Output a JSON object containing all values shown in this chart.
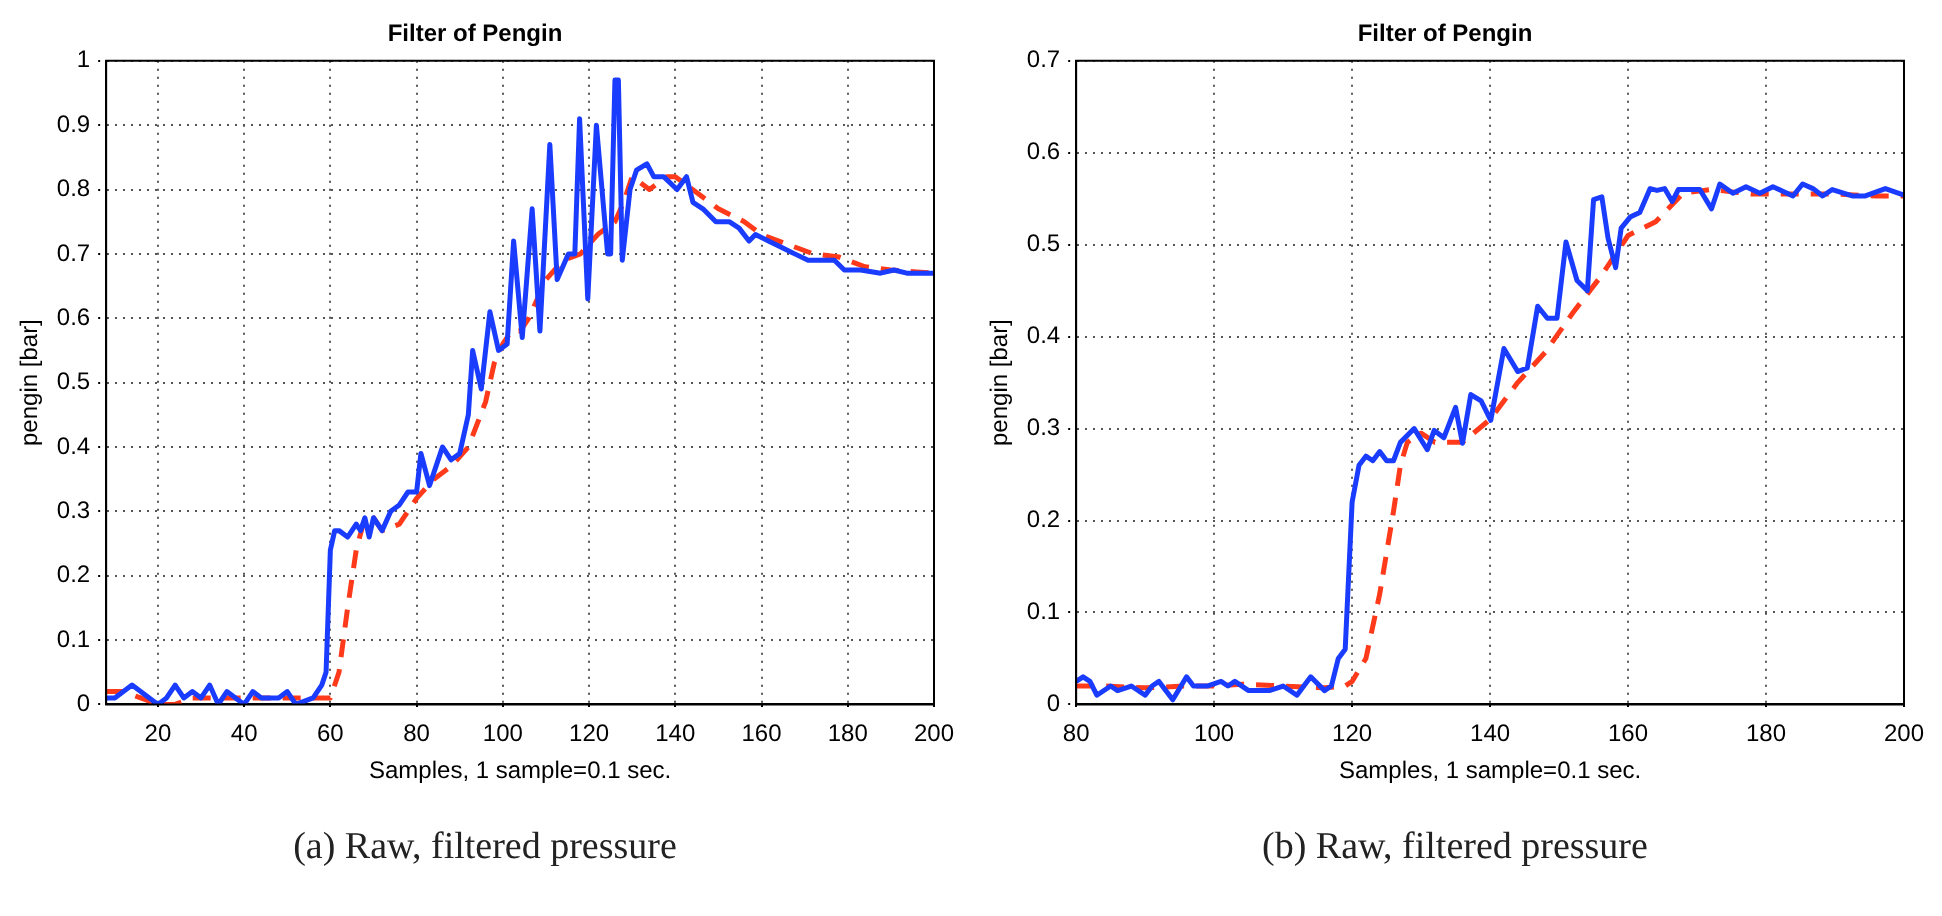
{
  "chart_data": [
    {
      "type": "line",
      "title": "Filter of Pengin",
      "xlabel": "Samples, 1 sample=0.1 sec.",
      "ylabel": "pengin [bar]",
      "annotations": [
        "(a) Raw, filtered pressure"
      ],
      "xlim": [
        8,
        200
      ],
      "xticks": [
        20,
        40,
        60,
        80,
        100,
        120,
        140,
        160,
        180,
        200
      ],
      "ylim": [
        0,
        1
      ],
      "yticks": [
        0,
        0.1,
        0.2,
        0.3,
        0.4,
        0.5,
        0.6,
        0.7,
        0.8,
        0.9,
        1
      ],
      "grid": true,
      "legend": false,
      "marker": "none",
      "series": [
        {
          "color": "#1a3cff",
          "line_style": "solid",
          "x": [
            8,
            10,
            12,
            14,
            16,
            18,
            20,
            22,
            24,
            26,
            28,
            30,
            32,
            34,
            36,
            38,
            40,
            42,
            44,
            48,
            50,
            52,
            56,
            58,
            59,
            60,
            61,
            62,
            64,
            66,
            67,
            68,
            69,
            70,
            72,
            74,
            76,
            78,
            80,
            81,
            83,
            85,
            86,
            88,
            90,
            92,
            93,
            95,
            97,
            99,
            101,
            102.5,
            104.5,
            106.8,
            108.6,
            110.9,
            112.6,
            115.2,
            116.7,
            117.8,
            119.7,
            121.7,
            124.3,
            125,
            126,
            126.8,
            127.7,
            129.5,
            131,
            133.4,
            135,
            137.3,
            140.4,
            142.6,
            144.1,
            146.4,
            149.4,
            152.5,
            154.8,
            157.1,
            158.6,
            161.6,
            164.7,
            167.7,
            170.8,
            173.8,
            176.9,
            179.2,
            183,
            187.6,
            190.7,
            193.7,
            196,
            200
          ],
          "values": [
            0.01,
            0.01,
            0.02,
            0.03,
            0.02,
            0.01,
            0,
            0.01,
            0.03,
            0.01,
            0.02,
            0.01,
            0.03,
            0,
            0.02,
            0.01,
            0,
            0.02,
            0.01,
            0.01,
            0.02,
            0,
            0.01,
            0.03,
            0.05,
            0.24,
            0.27,
            0.27,
            0.26,
            0.28,
            0.27,
            0.29,
            0.26,
            0.29,
            0.27,
            0.3,
            0.31,
            0.33,
            0.33,
            0.39,
            0.34,
            0.38,
            0.4,
            0.38,
            0.39,
            0.45,
            0.55,
            0.49,
            0.61,
            0.55,
            0.56,
            0.72,
            0.57,
            0.77,
            0.58,
            0.87,
            0.66,
            0.7,
            0.7,
            0.91,
            0.63,
            0.9,
            0.7,
            0.7,
            0.97,
            0.97,
            0.69,
            0.8,
            0.83,
            0.84,
            0.82,
            0.82,
            0.8,
            0.82,
            0.78,
            0.77,
            0.75,
            0.75,
            0.74,
            0.72,
            0.73,
            0.72,
            0.71,
            0.7,
            0.69,
            0.69,
            0.69,
            0.675,
            0.675,
            0.67,
            0.675,
            0.67,
            0.67,
            0.67
          ]
        },
        {
          "color": "#ff3a1a",
          "line_style": "dashed",
          "x": [
            8,
            12,
            16,
            20,
            24,
            28,
            32,
            40,
            50,
            56,
            60,
            62,
            64,
            66,
            68,
            70,
            72,
            76,
            80,
            84,
            88,
            92,
            96,
            98,
            100,
            102,
            104,
            106,
            110,
            114,
            118,
            122,
            126,
            128,
            130,
            134,
            138,
            140,
            144,
            150,
            156,
            160,
            166,
            172,
            178,
            184,
            190,
            196,
            200
          ],
          "values": [
            0.02,
            0.02,
            0.01,
            0,
            0,
            0.01,
            0.01,
            0.01,
            0.01,
            0.01,
            0.01,
            0.05,
            0.15,
            0.24,
            0.29,
            0.29,
            0.27,
            0.28,
            0.32,
            0.35,
            0.37,
            0.4,
            0.47,
            0.53,
            0.56,
            0.58,
            0.58,
            0.6,
            0.66,
            0.69,
            0.7,
            0.73,
            0.75,
            0.78,
            0.82,
            0.8,
            0.82,
            0.82,
            0.8,
            0.77,
            0.75,
            0.73,
            0.715,
            0.7,
            0.695,
            0.68,
            0.675,
            0.672,
            0.67
          ]
        }
      ]
    },
    {
      "type": "line",
      "title": "Filter of Pengin",
      "xlabel": "Samples, 1 sample=0.1 sec.",
      "ylabel": "pengin [bar]",
      "annotations": [
        "(b) Raw, filtered pressure"
      ],
      "xlim": [
        80,
        200
      ],
      "xticks": [
        80,
        100,
        120,
        140,
        160,
        180,
        200
      ],
      "ylim": [
        0,
        0.7
      ],
      "yticks": [
        0,
        0.1,
        0.2,
        0.3,
        0.4,
        0.5,
        0.6,
        0.7
      ],
      "grid": true,
      "legend": false,
      "marker": "none",
      "series": [
        {
          "color": "#1a3cff",
          "line_style": "solid",
          "x": [
            80,
            81,
            82,
            83,
            85,
            86,
            88,
            90,
            91,
            92,
            94,
            96,
            97,
            99,
            101,
            102,
            103,
            105,
            108,
            110,
            112,
            114,
            116,
            117,
            118,
            119,
            120,
            121,
            122,
            123,
            124,
            125,
            126,
            127,
            129,
            130.9,
            131.9,
            133.3,
            135,
            136,
            137.2,
            138.7,
            140.1,
            142,
            144,
            145.4,
            146.9,
            148.3,
            149.7,
            151,
            152.6,
            154.1,
            155,
            156.2,
            157.1,
            158.2,
            159,
            160.3,
            161.7,
            163.2,
            164.2,
            165.3,
            166.4,
            167.3,
            170.4,
            172.1,
            173.3,
            175.2,
            177.1,
            179.1,
            181,
            183.9,
            185.3,
            186.8,
            188.2,
            189.6,
            192.5,
            194.4,
            197.3,
            200
          ],
          "values": [
            0.025,
            0.03,
            0.025,
            0.01,
            0.02,
            0.015,
            0.02,
            0.01,
            0.02,
            0.025,
            0.005,
            0.03,
            0.02,
            0.02,
            0.025,
            0.02,
            0.025,
            0.015,
            0.015,
            0.02,
            0.01,
            0.03,
            0.015,
            0.02,
            0.05,
            0.06,
            0.22,
            0.26,
            0.27,
            0.265,
            0.275,
            0.265,
            0.265,
            0.285,
            0.3,
            0.277,
            0.298,
            0.29,
            0.323,
            0.284,
            0.337,
            0.33,
            0.309,
            0.387,
            0.362,
            0.366,
            0.433,
            0.42,
            0.42,
            0.503,
            0.461,
            0.45,
            0.549,
            0.552,
            0.507,
            0.475,
            0.518,
            0.53,
            0.535,
            0.561,
            0.559,
            0.561,
            0.547,
            0.56,
            0.56,
            0.539,
            0.566,
            0.556,
            0.563,
            0.556,
            0.563,
            0.553,
            0.566,
            0.561,
            0.553,
            0.56,
            0.553,
            0.553,
            0.561,
            0.554
          ]
        },
        {
          "color": "#ff3a1a",
          "line_style": "dashed",
          "x": [
            80,
            84,
            90,
            96,
            100,
            104,
            110,
            116,
            119,
            120,
            122,
            124,
            126,
            127,
            128,
            130,
            132,
            136,
            140,
            144,
            148,
            152,
            156,
            160,
            164,
            168,
            172,
            178,
            184,
            190,
            196,
            200
          ],
          "values": [
            0.02,
            0.02,
            0.018,
            0.02,
            0.02,
            0.022,
            0.02,
            0.018,
            0.02,
            0.025,
            0.05,
            0.12,
            0.21,
            0.26,
            0.285,
            0.295,
            0.285,
            0.285,
            0.31,
            0.35,
            0.383,
            0.426,
            0.465,
            0.51,
            0.525,
            0.556,
            0.56,
            0.555,
            0.555,
            0.555,
            0.553,
            0.553
          ]
        }
      ]
    }
  ]
}
